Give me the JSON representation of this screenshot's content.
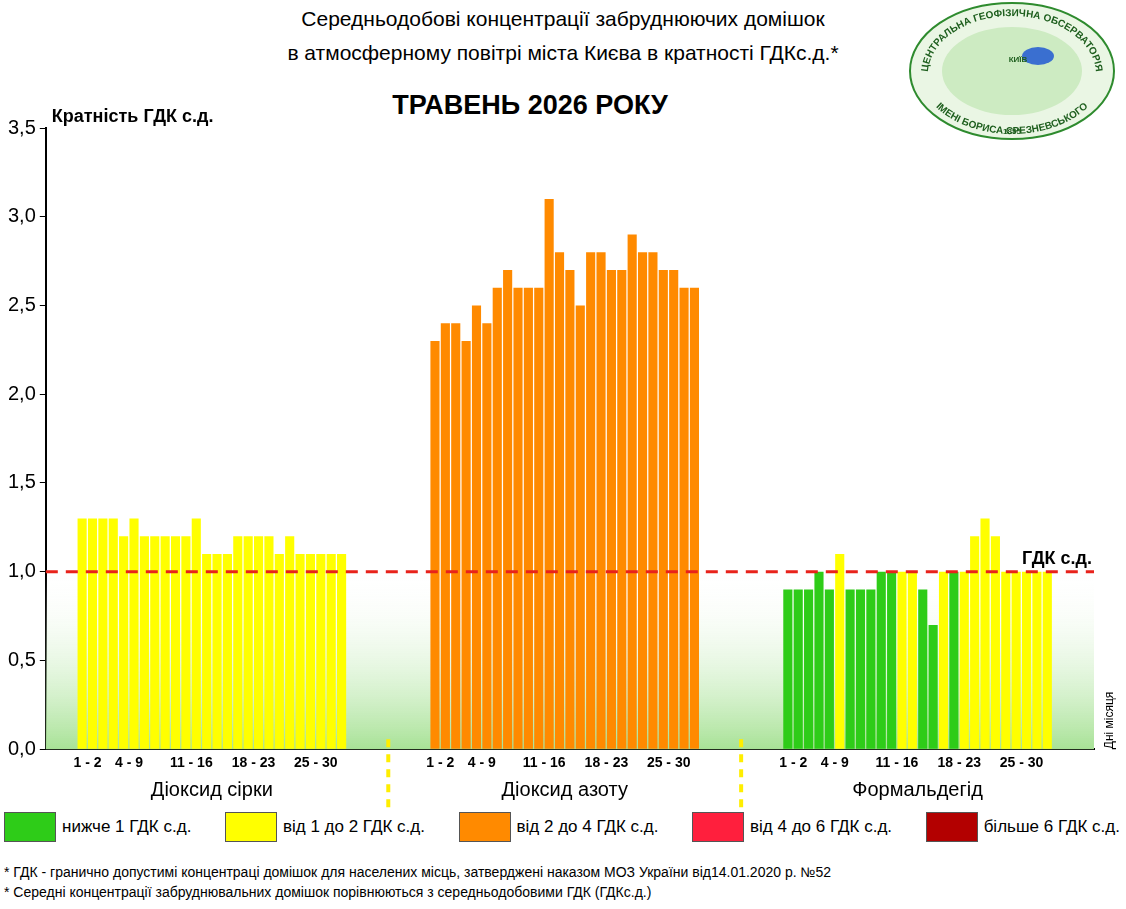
{
  "chart_data": {
    "type": "bar",
    "title": [
      "Середньодобові концентрації забруднюючих домішок",
      "в атмосферному повітрі міста Києва в кратності ГДКс.д.*"
    ],
    "subtitle": "ТРАВЕНЬ 2026 РОКУ",
    "y_label": "Кратність ГДК с.д.",
    "x_label": "Дні місяця",
    "categories": [
      null,
      "1 - 2",
      null,
      null,
      null,
      "4 - 9",
      null,
      null,
      null,
      null,
      null,
      "11 - 16",
      null,
      null,
      null,
      null,
      null,
      "18 - 23",
      null,
      null,
      null,
      null,
      null,
      "25 - 30",
      null,
      null
    ],
    "series": [
      {
        "name": "Діоксид сірки",
        "values": [
          1.3,
          1.3,
          1.3,
          1.3,
          1.2,
          1.3,
          1.2,
          1.2,
          1.2,
          1.2,
          1.2,
          1.3,
          1.1,
          1.1,
          1.1,
          1.2,
          1.2,
          1.2,
          1.2,
          1.1,
          1.2,
          1.1,
          1.1,
          1.1,
          1.1,
          1.1
        ],
        "colors": [
          "#ffff00",
          "#ffff00",
          "#ffff00",
          "#ffff00",
          "#ffff00",
          "#ffff00",
          "#ffff00",
          "#ffff00",
          "#ffff00",
          "#ffff00",
          "#ffff00",
          "#ffff00",
          "#ffff00",
          "#ffff00",
          "#ffff00",
          "#ffff00",
          "#ffff00",
          "#ffff00",
          "#ffff00",
          "#ffff00",
          "#ffff00",
          "#ffff00",
          "#ffff00",
          "#ffff00",
          "#ffff00",
          "#ffff00"
        ]
      },
      {
        "name": "Діоксид азоту",
        "values": [
          2.3,
          2.4,
          2.4,
          2.3,
          2.5,
          2.4,
          2.6,
          2.7,
          2.6,
          2.6,
          2.6,
          3.1,
          2.8,
          2.7,
          2.5,
          2.8,
          2.8,
          2.7,
          2.7,
          2.9,
          2.8,
          2.8,
          2.7,
          2.7,
          2.6,
          2.6
        ],
        "colors": [
          "#ff8a00",
          "#ff8a00",
          "#ff8a00",
          "#ff8a00",
          "#ff8a00",
          "#ff8a00",
          "#ff8a00",
          "#ff8a00",
          "#ff8a00",
          "#ff8a00",
          "#ff8a00",
          "#ff8a00",
          "#ff8a00",
          "#ff8a00",
          "#ff8a00",
          "#ff8a00",
          "#ff8a00",
          "#ff8a00",
          "#ff8a00",
          "#ff8a00",
          "#ff8a00",
          "#ff8a00",
          "#ff8a00",
          "#ff8a00",
          "#ff8a00",
          "#ff8a00"
        ]
      },
      {
        "name": "Формальдегід",
        "values": [
          0.9,
          0.9,
          0.9,
          1.0,
          0.9,
          1.1,
          0.9,
          0.9,
          0.9,
          1.0,
          1.0,
          1.0,
          1.0,
          0.9,
          0.7,
          1.0,
          1.0,
          1.0,
          1.2,
          1.3,
          1.2,
          1.0,
          1.0,
          1.0,
          1.0,
          1.0
        ],
        "colors": [
          "#2ecc18",
          "#2ecc18",
          "#2ecc18",
          "#2ecc18",
          "#2ecc18",
          "#ffff00",
          "#2ecc18",
          "#2ecc18",
          "#2ecc18",
          "#2ecc18",
          "#2ecc18",
          "#ffff00",
          "#ffff00",
          "#2ecc18",
          "#2ecc18",
          "#ffff00",
          "#2ecc18",
          "#ffff00",
          "#ffff00",
          "#ffff00",
          "#ffff00",
          "#ffff00",
          "#ffff00",
          "#ffff00",
          "#ffff00",
          "#ffff00"
        ]
      }
    ],
    "ylim": [
      0,
      3.5
    ],
    "yticks": [
      {
        "value": 0,
        "label": "0,0"
      },
      {
        "value": 0.5,
        "label": "0,5"
      },
      {
        "value": 1,
        "label": "1,0"
      },
      {
        "value": 1.5,
        "label": "1,5"
      },
      {
        "value": 2,
        "label": "2,0"
      },
      {
        "value": 2.5,
        "label": "2,5"
      },
      {
        "value": 3,
        "label": "3,0"
      },
      {
        "value": 3.5,
        "label": "3,5"
      }
    ],
    "grid": false,
    "reference_line": {
      "value": 1,
      "label": "ГДК с.д.",
      "color": "#e8221b"
    },
    "legend": "bottom",
    "color_classes": [
      {
        "label": "нижче 1 ГДК с.д.",
        "color": "#2ecc18"
      },
      {
        "label": "від 1 до 2 ГДК с.д.",
        "color": "#ffff00"
      },
      {
        "label": "від 2 до 4 ГДК с.д.",
        "color": "#ff8a00"
      },
      {
        "label": "від 4 до 6 ГДК с.д.",
        "color": "#ff1f3d"
      },
      {
        "label": "більше 6 ГДК с.д.",
        "color": "#b30000"
      }
    ],
    "footnotes": [
      "* ГДК - граничнo допустимі концентраці домішок для населених місць, затверджені наказом МОЗ України від14.01.2020 р. №52",
      "* Середні концентрації забруднювальних домішок порівнюються з середньодобовими ГДК (ГДКс.д.)"
    ],
    "logo": {
      "top": "ЦЕНТРАЛЬНА ГЕОФІЗИЧНА ОБСЕРВАТОРІЯ",
      "bottom": "ІМЕНІ БОРИСА СРЕЗНЕВСЬКОГО",
      "city": "КИЇВ",
      "year": "1855"
    }
  }
}
